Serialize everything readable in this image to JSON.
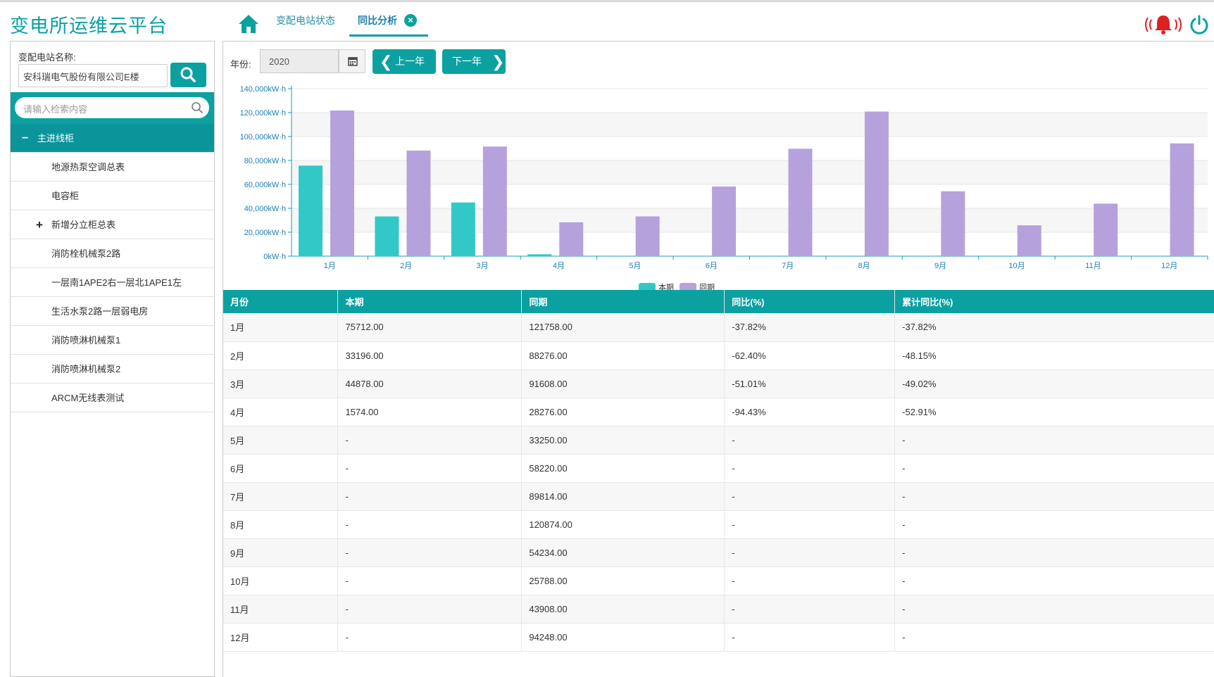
{
  "header": {
    "brand": "变电所运维云平台",
    "tabs": [
      {
        "label": "变配电站状态"
      },
      {
        "label": "同比分析",
        "close": "×"
      }
    ]
  },
  "sidebar": {
    "station_label": "变配电站名称:",
    "station_value": "安科瑞电气股份有限公司E楼",
    "filter_placeholder": "请输入检索内容",
    "tree_root": {
      "toggle": "−",
      "label": "主进线柜"
    },
    "items": [
      {
        "label": "地源热泵空调总表"
      },
      {
        "label": "电容柜"
      },
      {
        "label": "新增分立柜总表",
        "toggle": "+"
      },
      {
        "label": "消防栓机械泵2路"
      },
      {
        "label": "一层南1APE2右一层北1APE1左"
      },
      {
        "label": "生活水泵2路一层弱电房"
      },
      {
        "label": "消防喷淋机械泵1"
      },
      {
        "label": "消防喷淋机械泵2"
      },
      {
        "label": "ARCM无线表测试"
      }
    ]
  },
  "toolbar": {
    "year_label": "年份:",
    "year_value": "2020",
    "prev_label": "上一年",
    "next_label": "下一年"
  },
  "chart_data": {
    "type": "bar",
    "categories": [
      "1月",
      "2月",
      "3月",
      "4月",
      "5月",
      "6月",
      "7月",
      "8月",
      "9月",
      "10月",
      "11月",
      "12月"
    ],
    "series": [
      {
        "name": "本期",
        "color": "#33c8c8",
        "values": [
          75712,
          33196,
          44878,
          1574,
          0,
          0,
          0,
          0,
          0,
          0,
          0,
          0
        ]
      },
      {
        "name": "同期",
        "color": "#b5a2dd",
        "values": [
          121758,
          88276,
          91608,
          28276,
          33250,
          58220,
          89814,
          120874,
          54234,
          25788,
          43908,
          94248
        ]
      }
    ],
    "ylim": [
      0,
      140000
    ],
    "yticks": [
      0,
      20000,
      40000,
      60000,
      80000,
      100000,
      120000,
      140000
    ],
    "ytick_labels": [
      "0kW·h",
      "20,000kW·h",
      "40,000kW·h",
      "60,000kW·h",
      "80,000kW·h",
      "100,000kW·h",
      "120,000kW·h",
      "140,000kW·h"
    ],
    "legend_position": "bottom-center",
    "grid": true
  },
  "table": {
    "headers": [
      "月份",
      "本期",
      "同期",
      "同比(%)",
      "累计同比(%)"
    ],
    "rows": [
      [
        "1月",
        "75712.00",
        "121758.00",
        "-37.82%",
        "-37.82%"
      ],
      [
        "2月",
        "33196.00",
        "88276.00",
        "-62.40%",
        "-48.15%"
      ],
      [
        "3月",
        "44878.00",
        "91608.00",
        "-51.01%",
        "-49.02%"
      ],
      [
        "4月",
        "1574.00",
        "28276.00",
        "-94.43%",
        "-52.91%"
      ],
      [
        "5月",
        "-",
        "33250.00",
        "-",
        "-"
      ],
      [
        "6月",
        "-",
        "58220.00",
        "-",
        "-"
      ],
      [
        "7月",
        "-",
        "89814.00",
        "-",
        "-"
      ],
      [
        "8月",
        "-",
        "120874.00",
        "-",
        "-"
      ],
      [
        "9月",
        "-",
        "54234.00",
        "-",
        "-"
      ],
      [
        "10月",
        "-",
        "25788.00",
        "-",
        "-"
      ],
      [
        "11月",
        "-",
        "43908.00",
        "-",
        "-"
      ],
      [
        "12月",
        "-",
        "94248.00",
        "-",
        "-"
      ]
    ]
  },
  "colors": {
    "accent": "#0ba1a1",
    "tree_active": "#0b959b",
    "alarm": "#e02020"
  }
}
